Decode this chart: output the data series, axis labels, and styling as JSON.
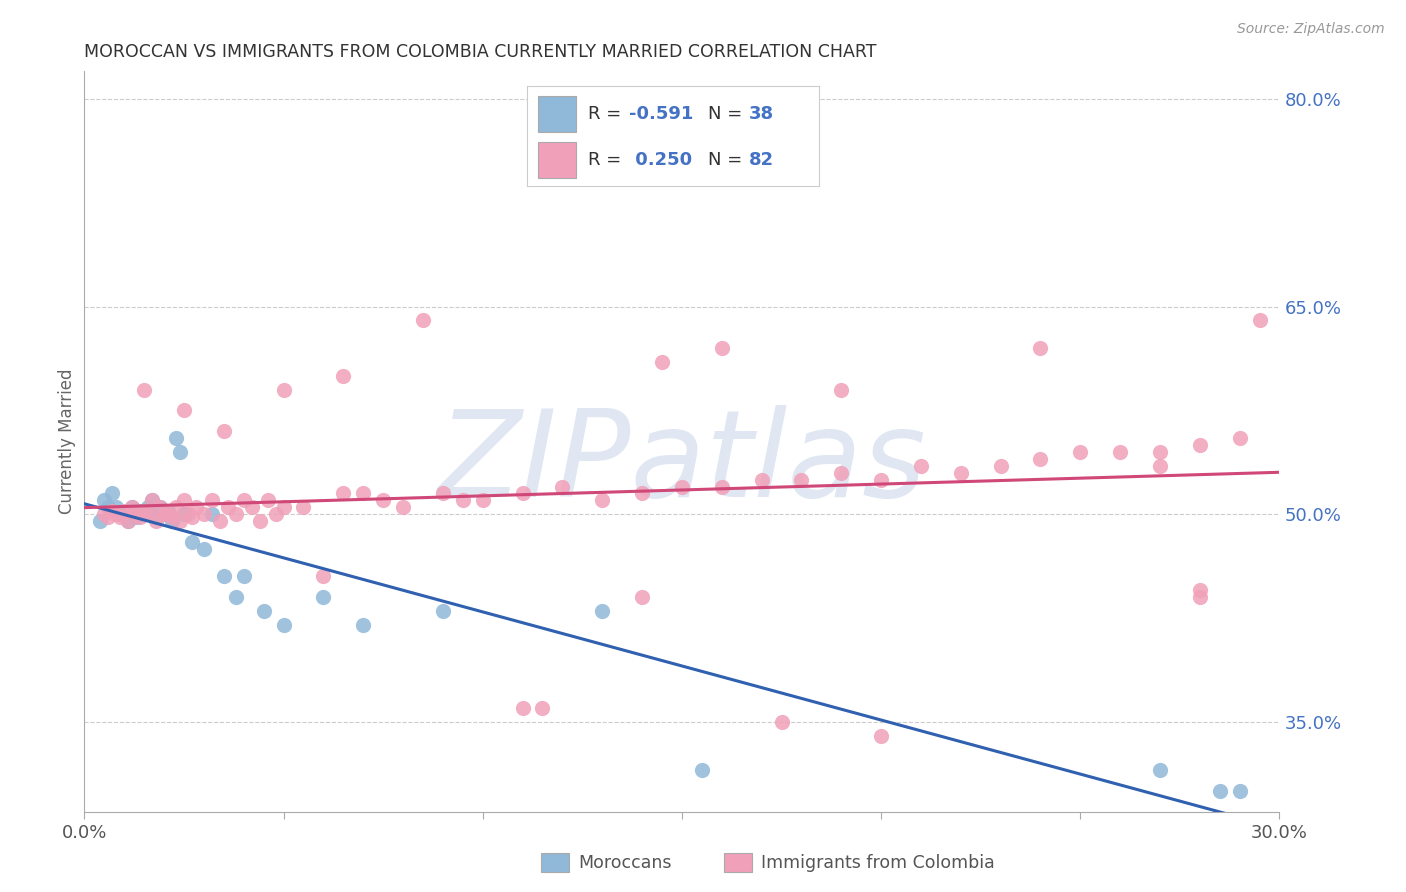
{
  "title": "MOROCCAN VS IMMIGRANTS FROM COLOMBIA CURRENTLY MARRIED CORRELATION CHART",
  "source": "Source: ZipAtlas.com",
  "ylabel": "Currently Married",
  "watermark": "ZIPatlas",
  "xlim": [
    0.0,
    0.3
  ],
  "ylim": [
    0.285,
    0.82
  ],
  "xtick_vals": [
    0.0,
    0.05,
    0.1,
    0.15,
    0.2,
    0.25,
    0.3
  ],
  "right_yticks": [
    0.8,
    0.65,
    0.5,
    0.35
  ],
  "right_yticklabels": [
    "80.0%",
    "65.0%",
    "50.0%",
    "35.0%"
  ],
  "blue_dot_color": "#90b8d8",
  "pink_dot_color": "#f0a0b8",
  "blue_line_color": "#3060b0",
  "pink_line_color": "#d04878",
  "legend_text_color": "#4472c4",
  "R_blue_str": "-0.591",
  "N_blue_str": "38",
  "R_pink_str": "0.250",
  "N_pink_str": "82",
  "legend_label_blue": "Moroccans",
  "legend_label_pink": "Immigrants from Colombia",
  "blue_scatter_x": [
    0.004,
    0.005,
    0.006,
    0.007,
    0.008,
    0.009,
    0.01,
    0.011,
    0.012,
    0.013,
    0.014,
    0.015,
    0.016,
    0.017,
    0.018,
    0.019,
    0.02,
    0.021,
    0.022,
    0.023,
    0.024,
    0.025,
    0.027,
    0.03,
    0.032,
    0.035,
    0.038,
    0.04,
    0.045,
    0.05,
    0.06,
    0.07,
    0.09,
    0.13,
    0.155,
    0.27,
    0.285,
    0.29
  ],
  "blue_scatter_y": [
    0.495,
    0.51,
    0.505,
    0.515,
    0.505,
    0.5,
    0.5,
    0.495,
    0.505,
    0.498,
    0.502,
    0.5,
    0.505,
    0.51,
    0.498,
    0.505,
    0.5,
    0.502,
    0.495,
    0.555,
    0.545,
    0.5,
    0.48,
    0.475,
    0.5,
    0.455,
    0.44,
    0.455,
    0.43,
    0.42,
    0.44,
    0.42,
    0.43,
    0.43,
    0.315,
    0.315,
    0.3,
    0.3
  ],
  "pink_scatter_x": [
    0.005,
    0.006,
    0.007,
    0.008,
    0.009,
    0.01,
    0.011,
    0.012,
    0.013,
    0.014,
    0.015,
    0.016,
    0.017,
    0.018,
    0.019,
    0.02,
    0.021,
    0.022,
    0.023,
    0.024,
    0.025,
    0.026,
    0.027,
    0.028,
    0.03,
    0.032,
    0.034,
    0.036,
    0.038,
    0.04,
    0.042,
    0.044,
    0.046,
    0.048,
    0.05,
    0.055,
    0.06,
    0.065,
    0.07,
    0.075,
    0.08,
    0.09,
    0.095,
    0.1,
    0.11,
    0.12,
    0.13,
    0.14,
    0.15,
    0.16,
    0.17,
    0.18,
    0.19,
    0.2,
    0.21,
    0.22,
    0.23,
    0.24,
    0.25,
    0.26,
    0.27,
    0.28,
    0.29,
    0.295,
    0.015,
    0.025,
    0.035,
    0.05,
    0.065,
    0.085,
    0.11,
    0.14,
    0.16,
    0.2,
    0.24,
    0.27,
    0.28,
    0.145,
    0.19,
    0.28,
    0.115,
    0.175
  ],
  "pink_scatter_y": [
    0.5,
    0.498,
    0.502,
    0.5,
    0.498,
    0.502,
    0.495,
    0.505,
    0.5,
    0.498,
    0.502,
    0.5,
    0.51,
    0.495,
    0.505,
    0.5,
    0.5,
    0.498,
    0.505,
    0.495,
    0.51,
    0.5,
    0.498,
    0.505,
    0.5,
    0.51,
    0.495,
    0.505,
    0.5,
    0.51,
    0.505,
    0.495,
    0.51,
    0.5,
    0.505,
    0.505,
    0.455,
    0.515,
    0.515,
    0.51,
    0.505,
    0.515,
    0.51,
    0.51,
    0.515,
    0.52,
    0.51,
    0.515,
    0.52,
    0.52,
    0.525,
    0.525,
    0.53,
    0.525,
    0.535,
    0.53,
    0.535,
    0.54,
    0.545,
    0.545,
    0.545,
    0.55,
    0.555,
    0.64,
    0.59,
    0.575,
    0.56,
    0.59,
    0.6,
    0.64,
    0.36,
    0.44,
    0.62,
    0.34,
    0.62,
    0.535,
    0.44,
    0.61,
    0.59,
    0.445,
    0.36,
    0.35
  ],
  "grid_color": "#cccccc",
  "title_color": "#333333",
  "axis_label_color": "#555555",
  "right_tick_color": "#4472c4",
  "watermark_color": "#c8d4e8",
  "bg": "#ffffff"
}
